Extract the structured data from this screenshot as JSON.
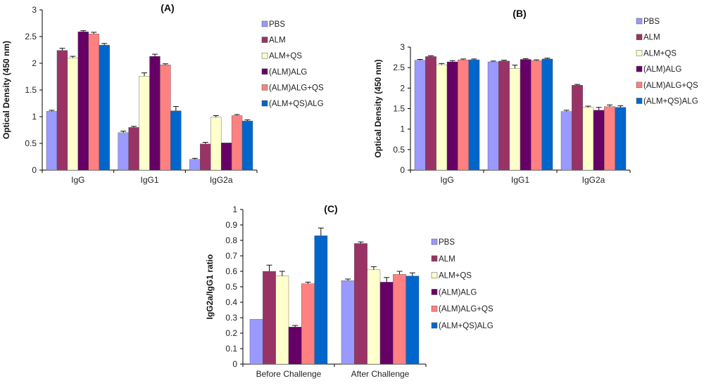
{
  "series_colors": {
    "PBS": "#9999ff",
    "ALM": "#993366",
    "ALM+QS": "#ffffcc",
    "(ALM)ALG": "#660066",
    "(ALM)ALG+QS": "#ff8080",
    "(ALM+QS)ALG": "#0066cc"
  },
  "chart_data": [
    {
      "type": "bar",
      "title": "(A)",
      "ylabel": "Optical Density (450 nm)",
      "ylim": [
        0,
        3
      ],
      "yticks": [
        "0",
        "0.5",
        "1",
        "1.5",
        "2",
        "2.5",
        "3"
      ],
      "ytick_values": [
        0,
        0.5,
        1,
        1.5,
        2,
        2.5,
        3
      ],
      "categories": [
        "IgG",
        "IgG1",
        "IgG2a"
      ],
      "legend": "right",
      "series": [
        {
          "name": "PBS",
          "values": [
            1.1,
            0.7,
            0.2
          ],
          "errors": [
            0.02,
            0.03,
            0.02
          ]
        },
        {
          "name": "ALM",
          "values": [
            2.24,
            0.8,
            0.49
          ],
          "errors": [
            0.04,
            0.02,
            0.03
          ]
        },
        {
          "name": "ALM+QS",
          "values": [
            2.1,
            1.76,
            0.99
          ],
          "errors": [
            0.03,
            0.06,
            0.03
          ]
        },
        {
          "name": "(ALM)ALG",
          "values": [
            2.59,
            2.13,
            0.51
          ],
          "errors": [
            0.02,
            0.04,
            0.0
          ]
        },
        {
          "name": "(ALM)ALG+QS",
          "values": [
            2.55,
            1.97,
            1.02
          ],
          "errors": [
            0.03,
            0.02,
            0.02
          ]
        },
        {
          "name": "(ALM+QS)ALG",
          "values": [
            2.34,
            1.11,
            0.92
          ],
          "errors": [
            0.03,
            0.08,
            0.02
          ]
        }
      ]
    },
    {
      "type": "bar",
      "title": "(B)",
      "ylabel": "Optical Density (450 nm)",
      "ylim": [
        0,
        3
      ],
      "yticks": [
        "0",
        "0.5",
        "1",
        "1.5",
        "2",
        "2.5",
        "3"
      ],
      "ytick_values": [
        0,
        0.5,
        1,
        1.5,
        2,
        2.5,
        3
      ],
      "categories": [
        "IgG",
        "IgG1",
        "IgG2a"
      ],
      "legend": "right",
      "series": [
        {
          "name": "PBS",
          "values": [
            2.68,
            2.64,
            1.43
          ],
          "errors": [
            0.02,
            0.02,
            0.03
          ]
        },
        {
          "name": "ALM",
          "values": [
            2.77,
            2.66,
            2.07
          ],
          "errors": [
            0.02,
            0.02,
            0.02
          ]
        },
        {
          "name": "ALM+QS",
          "values": [
            2.57,
            2.48,
            1.53
          ],
          "errors": [
            0.03,
            0.08,
            0.03
          ]
        },
        {
          "name": "(ALM)ALG",
          "values": [
            2.64,
            2.7,
            1.46
          ],
          "errors": [
            0.03,
            0.02,
            0.07
          ]
        },
        {
          "name": "(ALM)ALG+QS",
          "values": [
            2.69,
            2.67,
            1.55
          ],
          "errors": [
            0.02,
            0.02,
            0.04
          ]
        },
        {
          "name": "(ALM+QS)ALG",
          "values": [
            2.69,
            2.71,
            1.53
          ],
          "errors": [
            0.02,
            0.02,
            0.04
          ]
        }
      ]
    },
    {
      "type": "bar",
      "title": "(C)",
      "ylabel": "IgG2a/IgG1 ratio",
      "ylim": [
        0,
        1
      ],
      "yticks": [
        "0",
        "0.1",
        "0.2",
        "0.3",
        "0.4",
        "0.5",
        "0.6",
        "0.7",
        "0.8",
        "0.9",
        "1"
      ],
      "ytick_values": [
        0,
        0.1,
        0.2,
        0.3,
        0.4,
        0.5,
        0.6,
        0.7,
        0.8,
        0.9,
        1
      ],
      "categories": [
        "Before Challenge",
        "After Challenge"
      ],
      "legend": "right",
      "series": [
        {
          "name": "PBS",
          "values": [
            0.29,
            0.54
          ],
          "errors": [
            0.0,
            0.01
          ]
        },
        {
          "name": "ALM",
          "values": [
            0.6,
            0.78
          ],
          "errors": [
            0.04,
            0.01
          ]
        },
        {
          "name": "ALM+QS",
          "values": [
            0.57,
            0.61
          ],
          "errors": [
            0.03,
            0.02
          ]
        },
        {
          "name": "(ALM)ALG",
          "values": [
            0.24,
            0.53
          ],
          "errors": [
            0.01,
            0.03
          ]
        },
        {
          "name": "(ALM)ALG+QS",
          "values": [
            0.52,
            0.58
          ],
          "errors": [
            0.01,
            0.02
          ]
        },
        {
          "name": "(ALM+QS)ALG",
          "values": [
            0.83,
            0.57
          ],
          "errors": [
            0.05,
            0.02
          ]
        }
      ]
    }
  ]
}
